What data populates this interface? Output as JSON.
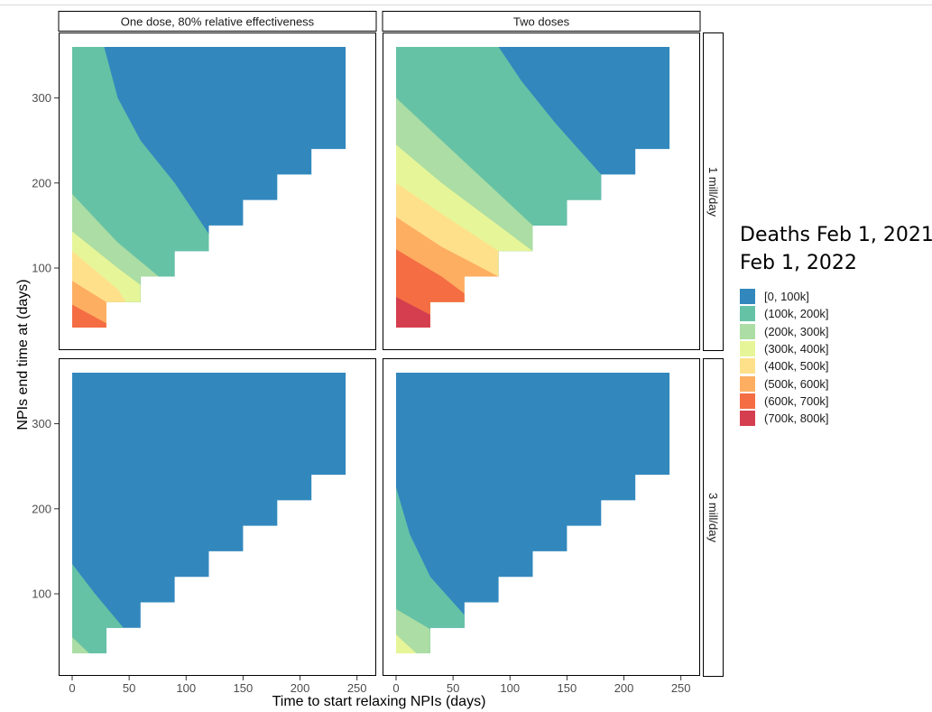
{
  "chart_data": {
    "type": "heatmap",
    "chart_kind": "filled contour, faceted 2x2",
    "xlabel": "Time to start relaxing NPIs (days)",
    "ylabel": "NPIs end time at (days)",
    "x_ticks": [
      0,
      50,
      100,
      150,
      200,
      250
    ],
    "y_ticks": [
      100,
      200,
      300
    ],
    "xlim": [
      0,
      255
    ],
    "ylim": [
      30,
      360
    ],
    "grid": false,
    "legend_position": "right",
    "column_facets": [
      "One dose, 80% relative effectiveness",
      "Two doses"
    ],
    "row_facets": [
      "1 mill/day",
      "3 mill/day"
    ],
    "legend": {
      "title_line1": "Deaths Feb 1, 2021-",
      "title_line2": "Feb 1, 2022",
      "bins": [
        {
          "label": "[0, 100k]",
          "color": "#3288bd"
        },
        {
          "label": "(100k, 200k]",
          "color": "#66c2a5"
        },
        {
          "label": "(200k, 300k]",
          "color": "#abdda4"
        },
        {
          "label": "(300k, 400k]",
          "color": "#e6f598"
        },
        {
          "label": "(400k, 500k]",
          "color": "#fee08b"
        },
        {
          "label": "(500k, 600k]",
          "color": "#fdae61"
        },
        {
          "label": "(600k, 700k]",
          "color": "#f46d43"
        },
        {
          "label": "(700k, 800k]",
          "color": "#d53e4f"
        }
      ]
    },
    "domain_staircase": [
      [
        0,
        360
      ],
      [
        240,
        360
      ],
      [
        240,
        240
      ],
      [
        210,
        240
      ],
      [
        210,
        210
      ],
      [
        180,
        210
      ],
      [
        180,
        180
      ],
      [
        150,
        180
      ],
      [
        150,
        150
      ],
      [
        120,
        150
      ],
      [
        120,
        120
      ],
      [
        90,
        120
      ],
      [
        90,
        90
      ],
      [
        60,
        90
      ],
      [
        60,
        60
      ],
      [
        30,
        60
      ],
      [
        30,
        30
      ],
      [
        0,
        30
      ]
    ],
    "panels": [
      {
        "column": "One dose, 80% relative effectiveness",
        "row": "1 mill/day",
        "boundaries": [
          {
            "upper_bin": "(100k, 200k]",
            "lower_bin": "[0, 100k]",
            "points": [
              [
                28,
                360
              ],
              [
                40,
                300
              ],
              [
                60,
                250
              ],
              [
                90,
                200
              ],
              [
                115,
                150
              ],
              [
                120,
                140
              ]
            ]
          },
          {
            "upper_bin": "(200k, 300k]",
            "lower_bin": "(100k, 200k]",
            "points": [
              [
                0,
                187
              ],
              [
                40,
                130
              ],
              [
                76,
                90
              ]
            ]
          },
          {
            "upper_bin": "(300k, 400k]",
            "lower_bin": "(200k, 300k]",
            "points": [
              [
                0,
                143
              ],
              [
                40,
                100
              ],
              [
                60,
                80
              ]
            ]
          },
          {
            "upper_bin": "(400k, 500k]",
            "lower_bin": "(300k, 400k]",
            "points": [
              [
                0,
                120
              ],
              [
                40,
                75
              ],
              [
                47,
                60
              ]
            ]
          },
          {
            "upper_bin": "(500k, 600k]",
            "lower_bin": "(400k, 500k]",
            "points": [
              [
                0,
                85
              ],
              [
                30,
                60
              ],
              [
                33,
                60
              ]
            ]
          },
          {
            "upper_bin": "(600k, 700k]",
            "lower_bin": "(500k, 600k]",
            "points": [
              [
                0,
                57
              ],
              [
                30,
                35
              ]
            ]
          }
        ]
      },
      {
        "column": "Two doses",
        "row": "1 mill/day",
        "boundaries": [
          {
            "upper_bin": "(100k, 200k]",
            "lower_bin": "[0, 100k]",
            "points": [
              [
                90,
                360
              ],
              [
                110,
                320
              ],
              [
                140,
                270
              ],
              [
                180,
                210
              ]
            ]
          },
          {
            "upper_bin": "(200k, 300k]",
            "lower_bin": "(100k, 200k]",
            "points": [
              [
                0,
                300
              ],
              [
                40,
                250
              ],
              [
                80,
                200
              ],
              [
                120,
                150
              ]
            ]
          },
          {
            "upper_bin": "(300k, 400k]",
            "lower_bin": "(200k, 300k]",
            "points": [
              [
                0,
                245
              ],
              [
                40,
                200
              ],
              [
                80,
                160
              ],
              [
                120,
                120
              ]
            ]
          },
          {
            "upper_bin": "(400k, 500k]",
            "lower_bin": "(300k, 400k]",
            "points": [
              [
                0,
                200
              ],
              [
                50,
                155
              ],
              [
                90,
                120
              ]
            ]
          },
          {
            "upper_bin": "(500k, 600k]",
            "lower_bin": "(400k, 500k]",
            "points": [
              [
                0,
                160
              ],
              [
                40,
                125
              ],
              [
                90,
                90
              ]
            ]
          },
          {
            "upper_bin": "(600k, 700k]",
            "lower_bin": "(500k, 600k]",
            "points": [
              [
                0,
                122
              ],
              [
                40,
                90
              ],
              [
                60,
                70
              ]
            ]
          },
          {
            "upper_bin": "(700k, 800k]",
            "lower_bin": "(600k, 700k]",
            "points": [
              [
                0,
                66
              ],
              [
                30,
                45
              ]
            ]
          }
        ]
      },
      {
        "column": "One dose, 80% relative effectiveness",
        "row": "3 mill/day",
        "boundaries": [
          {
            "upper_bin": "(100k, 200k]",
            "lower_bin": "[0, 100k]",
            "points": [
              [
                0,
                135
              ],
              [
                20,
                100
              ],
              [
                45,
                60
              ]
            ]
          },
          {
            "upper_bin": "(200k, 300k]",
            "lower_bin": "(100k, 200k]",
            "points": [
              [
                0,
                49
              ],
              [
                15,
                30
              ]
            ]
          }
        ]
      },
      {
        "column": "Two doses",
        "row": "3 mill/day",
        "boundaries": [
          {
            "upper_bin": "(100k, 200k]",
            "lower_bin": "[0, 100k]",
            "points": [
              [
                0,
                225
              ],
              [
                12,
                170
              ],
              [
                30,
                120
              ],
              [
                60,
                75
              ],
              [
                60,
                60
              ]
            ]
          },
          {
            "upper_bin": "(200k, 300k]",
            "lower_bin": "(100k, 200k]",
            "points": [
              [
                0,
                82
              ],
              [
                28,
                60
              ],
              [
                30,
                58
              ]
            ]
          },
          {
            "upper_bin": "(300k, 400k]",
            "lower_bin": "(200k, 300k]",
            "points": [
              [
                0,
                52
              ],
              [
                18,
                30
              ]
            ]
          }
        ]
      }
    ]
  }
}
